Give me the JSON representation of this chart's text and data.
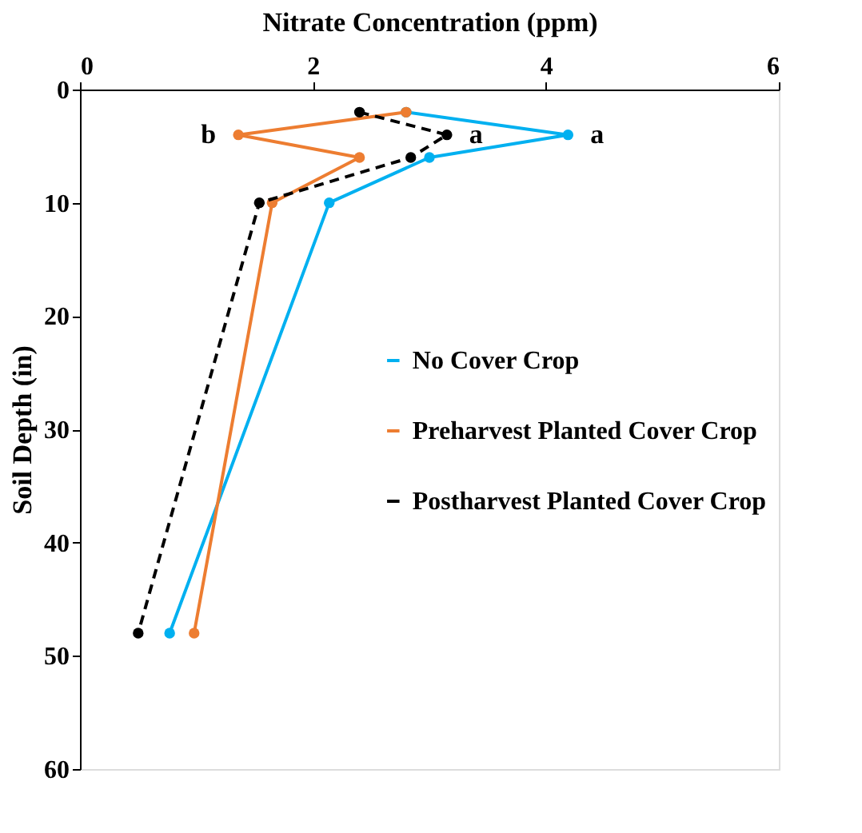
{
  "chart_data": {
    "type": "line",
    "xlabel": "Nitrate Concentration (ppm)",
    "ylabel": "Soil Depth (in)",
    "xlim": [
      0,
      6
    ],
    "xticks": [
      0,
      2,
      4,
      6
    ],
    "ylim": [
      60,
      0
    ],
    "yticks": [
      0,
      10,
      20,
      30,
      40,
      50,
      60
    ],
    "grid": false,
    "legend": "right",
    "marker": "circle",
    "series": [
      {
        "name": "No Cover Crop",
        "color": "#00b0f0",
        "x": [
          2.8,
          4.19,
          3.0,
          2.14,
          0.77
        ],
        "values": [
          2,
          4,
          6,
          10,
          48
        ],
        "line_style": "solid"
      },
      {
        "name": "Preharvest Planted Cover Crop",
        "color": "#ed7d31",
        "x": [
          2.8,
          1.36,
          2.4,
          1.65,
          0.98
        ],
        "values": [
          2,
          4,
          6,
          10,
          48
        ],
        "line_style": "solid"
      },
      {
        "name": "Postharvest Planted Cover Crop",
        "color": "#000000",
        "x": [
          2.4,
          3.15,
          2.84,
          1.54,
          0.5
        ],
        "values": [
          2,
          4,
          6,
          10,
          48
        ],
        "line_style": "dashed"
      }
    ],
    "annotations": [
      {
        "text": "b",
        "x": 1.36,
        "y": 4
      },
      {
        "text": "a",
        "x": 3.15,
        "y": 4
      },
      {
        "text": "a",
        "x": 4.19,
        "y": 4
      }
    ]
  }
}
